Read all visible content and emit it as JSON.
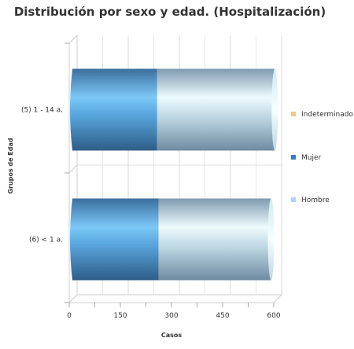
{
  "chart_data": {
    "type": "bar",
    "orientation": "horizontal",
    "stacked": true,
    "title": "Distribución por sexo y edad. (Hospitalización)",
    "xlabel": "Casos",
    "ylabel": "Grupos de Edad",
    "categories": [
      "(5) 1 - 14 a.",
      "(6) < 1 a."
    ],
    "xlim": [
      0,
      600
    ],
    "xticks": [
      0,
      150,
      300,
      450,
      600
    ],
    "series": [
      {
        "name": "Mujer",
        "values": [
          258,
          262
        ],
        "color": "#2f7ed8"
      },
      {
        "name": "Hombre",
        "values": [
          345,
          330
        ],
        "color": "#a9d6f5"
      },
      {
        "name": "Indeterminado",
        "values": [
          0,
          0
        ],
        "color": "#f0c987"
      }
    ],
    "legend_order": [
      "Indeterminado",
      "Mujer",
      "Hombre"
    ],
    "legend_position": "right",
    "grid": true
  }
}
